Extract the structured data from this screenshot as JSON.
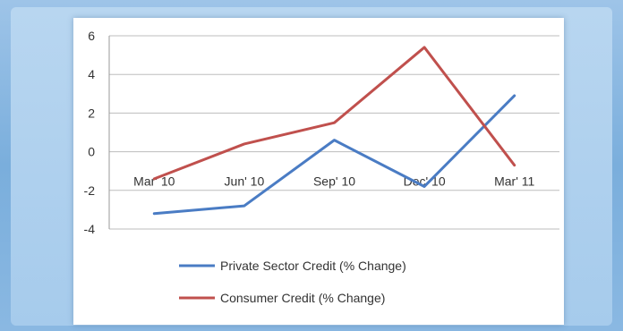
{
  "chart_data": {
    "type": "line",
    "categories": [
      "Mar' 10",
      "Jun' 10",
      "Sep' 10",
      "Dec' 10",
      "Mar' 11"
    ],
    "series": [
      {
        "name": "Private Sector Credit (% Change)",
        "values": [
          -3.2,
          -2.8,
          0.6,
          -1.8,
          2.9
        ],
        "color": "#4a7cc4"
      },
      {
        "name": "Consumer Credit (% Change)",
        "values": [
          -1.4,
          0.4,
          1.5,
          5.4,
          -0.7
        ],
        "color": "#c0504d"
      }
    ],
    "y_ticks": [
      "6",
      "4",
      "2",
      "0",
      "-2",
      "-4"
    ],
    "ylim": [
      -4,
      6
    ],
    "title": "",
    "xlabel": "",
    "ylabel": "",
    "grid": true,
    "legend_position": "bottom"
  }
}
